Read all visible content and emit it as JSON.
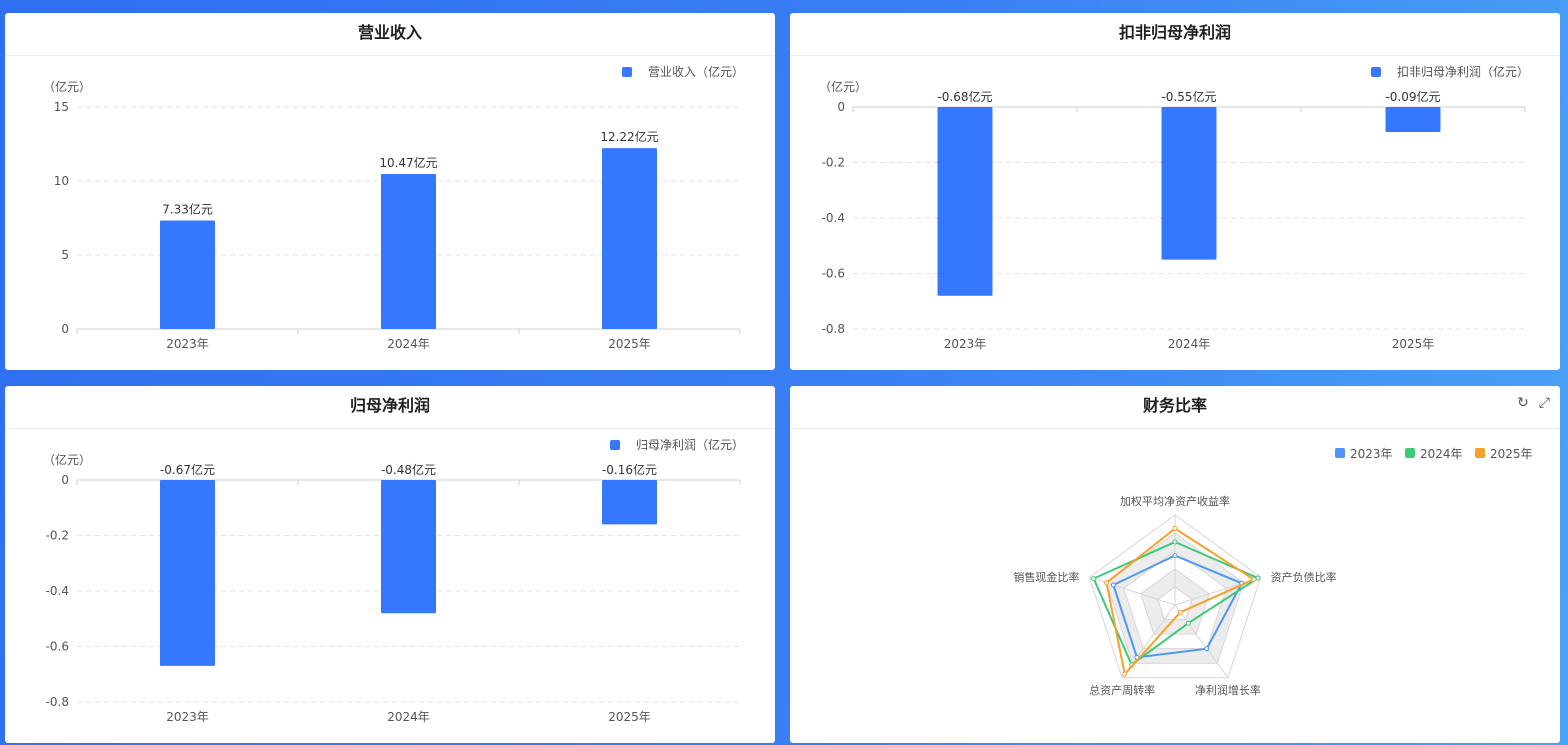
{
  "colors": {
    "bar": "#3578fe",
    "grid": "#e3e3e3",
    "axis_text": "#555555",
    "legend_text": "#555555",
    "radar_2023": "#4f96f6",
    "radar_2024": "#3ec87a",
    "radar_2025": "#f5a12a"
  },
  "icons": {
    "refresh": "refresh-icon",
    "expand": "expand-icon"
  },
  "chart_data": [
    {
      "type": "bar",
      "title": "营业收入",
      "unit_label": "（亿元）",
      "legend": "营业收入（亿元）",
      "categories": [
        "2023年",
        "2024年",
        "2025年"
      ],
      "series": [
        {
          "name": "营业收入（亿元）",
          "values": [
            7.33,
            10.47,
            12.22
          ]
        }
      ],
      "data_labels": [
        "7.33亿元",
        "10.47亿元",
        "12.22亿元"
      ],
      "yticks": [
        "0",
        "5",
        "10",
        "15"
      ],
      "ylim": [
        0,
        15
      ],
      "grid": true,
      "legend_position": "top-right"
    },
    {
      "type": "bar",
      "title": "扣非归母净利润",
      "unit_label": "（亿元）",
      "legend": "扣非归母净利润（亿元）",
      "categories": [
        "2023年",
        "2024年",
        "2025年"
      ],
      "series": [
        {
          "name": "扣非归母净利润（亿元）",
          "values": [
            -0.68,
            -0.55,
            -0.09
          ]
        }
      ],
      "data_labels": [
        "-0.68亿元",
        "-0.55亿元",
        "-0.09亿元"
      ],
      "yticks": [
        "0",
        "-0.2",
        "-0.4",
        "-0.6",
        "-0.8"
      ],
      "ylim": [
        -0.8,
        0
      ],
      "grid": true,
      "legend_position": "top-right"
    },
    {
      "type": "bar",
      "title": "归母净利润",
      "unit_label": "（亿元）",
      "legend": "归母净利润（亿元）",
      "categories": [
        "2023年",
        "2024年",
        "2025年"
      ],
      "series": [
        {
          "name": "归母净利润（亿元）",
          "values": [
            -0.67,
            -0.48,
            -0.16
          ]
        }
      ],
      "data_labels": [
        "-0.67亿元",
        "-0.48亿元",
        "-0.16亿元"
      ],
      "yticks": [
        "0",
        "-0.2",
        "-0.4",
        "-0.6",
        "-0.8"
      ],
      "ylim": [
        -0.8,
        0
      ],
      "grid": true,
      "legend_position": "top-right"
    },
    {
      "type": "radar",
      "title": "财务比率",
      "indicators": [
        "加权平均净资产收益率",
        "资产负债比率",
        "净利润增长率",
        "总资产周转率",
        "销售现金比率"
      ],
      "series": [
        {
          "name": "2023年",
          "values": [
            0.55,
            0.78,
            0.6,
            0.72,
            0.72
          ]
        },
        {
          "name": "2024年",
          "values": [
            0.7,
            0.97,
            0.25,
            0.82,
            0.95
          ]
        },
        {
          "name": "2025年",
          "values": [
            0.85,
            0.92,
            0.1,
            0.95,
            0.8
          ]
        }
      ],
      "legend_position": "top-right"
    }
  ]
}
